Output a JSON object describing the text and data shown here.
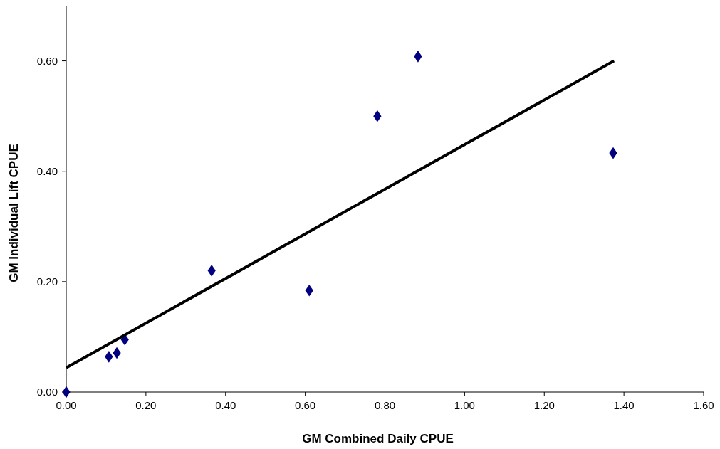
{
  "chart_data": {
    "type": "scatter",
    "xlabel": "GM Combined Daily CPUE",
    "ylabel": "GM Individual Lift CPUE",
    "marker": "diamond",
    "grid": false,
    "xlim": [
      0,
      1.6
    ],
    "xticks": [
      {
        "value": 0,
        "label": "0.00"
      },
      {
        "value": 0.2,
        "label": "0.20"
      },
      {
        "value": 0.4,
        "label": "0.40"
      },
      {
        "value": 0.6,
        "label": "0.60"
      },
      {
        "value": 0.8,
        "label": "0.80"
      },
      {
        "value": 1,
        "label": "1.00"
      },
      {
        "value": 1.2,
        "label": "1.20"
      },
      {
        "value": 1.4,
        "label": "1.40"
      },
      {
        "value": 1.6,
        "label": "1.60"
      }
    ],
    "ylim": [
      0,
      0.7
    ],
    "yticks": [
      {
        "value": 0,
        "label": "0.00"
      },
      {
        "value": 0.2,
        "label": "0.20"
      },
      {
        "value": 0.4,
        "label": "0.40"
      },
      {
        "value": 0.6,
        "label": "0.60"
      }
    ],
    "series": [
      {
        "color": "#000080",
        "x": [
          0,
          0.107,
          0.127,
          0.147,
          0.365,
          0.61,
          0.781,
          0.883,
          1.373
        ],
        "values": [
          0,
          0.064,
          0.071,
          0.095,
          0.22,
          0.184,
          0.5,
          0.608,
          0.433
        ]
      },
      {
        "type": "line",
        "color": "#000000",
        "line_style": "solid",
        "marker": "none",
        "x": [
          0,
          1.375
        ],
        "values": [
          0.044,
          0.6
        ]
      }
    ]
  }
}
